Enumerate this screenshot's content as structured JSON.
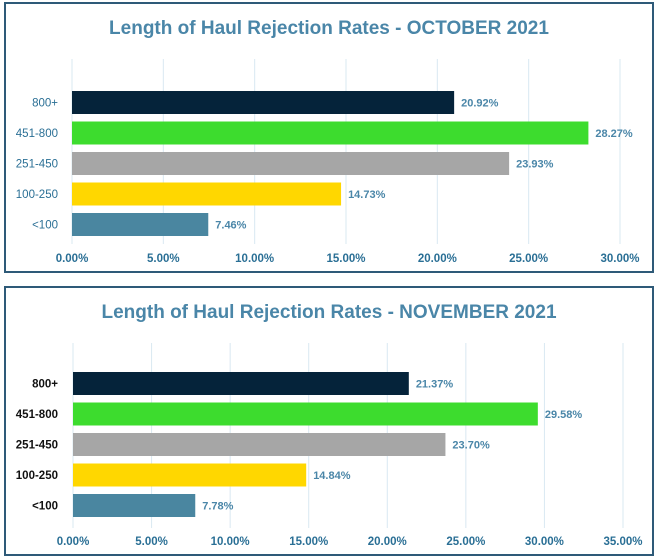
{
  "chart_data": [
    {
      "type": "bar",
      "orientation": "horizontal",
      "title": "Length of Haul Rejection Rates - OCTOBER 2021",
      "categories": [
        "800+",
        "451-800",
        "251-450",
        "100-250",
        "<100"
      ],
      "values": [
        20.92,
        28.27,
        23.93,
        14.73,
        7.46
      ],
      "value_labels": [
        "20.92%",
        "28.27%",
        "23.93%",
        "14.73%",
        "7.46%"
      ],
      "bar_colors": [
        "#05233a",
        "#3ddc2e",
        "#a6a6a6",
        "#ffd700",
        "#4a86a0"
      ],
      "xlim": [
        0,
        30
      ],
      "x_ticks": [
        0,
        5,
        10,
        15,
        20,
        25,
        30
      ],
      "x_tick_labels": [
        "0.00%",
        "5.00%",
        "10.00%",
        "15.00%",
        "20.00%",
        "25.00%",
        "30.00%"
      ],
      "grid": true,
      "category_label_color": "#2a6f95"
    },
    {
      "type": "bar",
      "orientation": "horizontal",
      "title": "Length of Haul Rejection Rates - NOVEMBER 2021",
      "categories": [
        "800+",
        "451-800",
        "251-450",
        "100-250",
        "<100"
      ],
      "values": [
        21.37,
        29.58,
        23.7,
        14.84,
        7.78
      ],
      "value_labels": [
        "21.37%",
        "29.58%",
        "23.70%",
        "14.84%",
        "7.78%"
      ],
      "bar_colors": [
        "#05233a",
        "#3ddc2e",
        "#a6a6a6",
        "#ffd700",
        "#4a86a0"
      ],
      "xlim": [
        0,
        35
      ],
      "x_ticks": [
        0,
        5,
        10,
        15,
        20,
        25,
        30,
        35
      ],
      "x_tick_labels": [
        "0.00%",
        "5.00%",
        "10.00%",
        "15.00%",
        "20.00%",
        "25.00%",
        "30.00%",
        "35.00%"
      ],
      "grid": true,
      "category_label_color": "#111111"
    }
  ]
}
